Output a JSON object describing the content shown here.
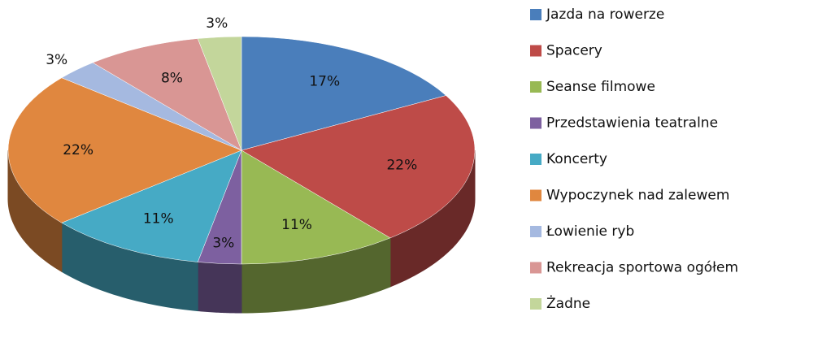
{
  "chart_data": {
    "type": "pie3d",
    "categories": [
      "Jazda na rowerze",
      "Spacery",
      "Seanse filmowe",
      "Przedstawienia teatralne",
      "Koncerty",
      "Wypoczynek nad zalewem",
      "Łowienie ryb",
      "Rekreacja sportowa ogółem",
      "Żadne"
    ],
    "values": [
      17,
      22,
      11,
      3,
      11,
      22,
      3,
      8,
      3
    ],
    "value_labels": [
      "17%",
      "22%",
      "11%",
      "3%",
      "11%",
      "22%",
      "3%",
      "8%",
      "3%"
    ],
    "colors": [
      "#4a7ebb",
      "#be4b48",
      "#98b954",
      "#7d60a0",
      "#46aac5",
      "#e0873f",
      "#a5b9e0",
      "#d99694",
      "#c3d69b"
    ],
    "legend": "right"
  }
}
